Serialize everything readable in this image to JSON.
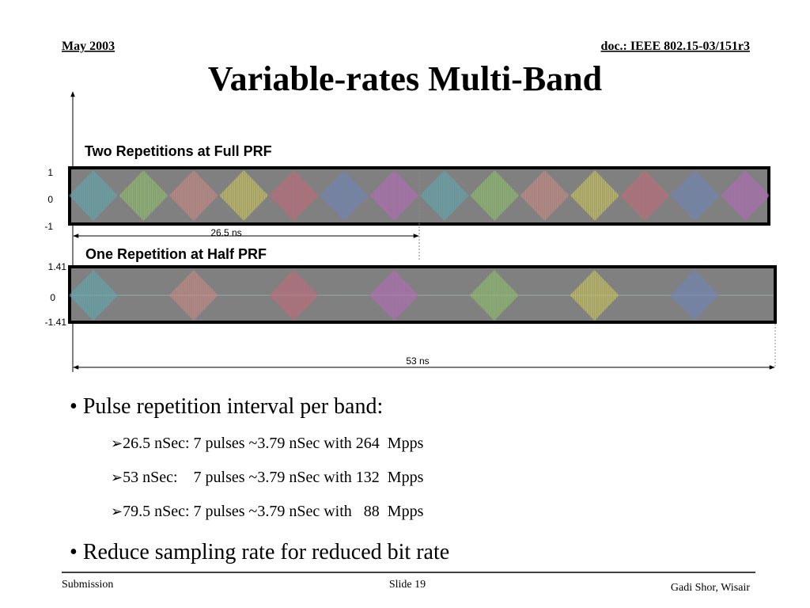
{
  "header": {
    "date": "May 2003",
    "doc": "doc.: IEEE 802.15-03/151r3"
  },
  "title": "Variable-rates Multi-Band",
  "figure": {
    "top": {
      "label": "Two Repetitions at Full PRF",
      "axis": [
        "1",
        "0",
        "-1"
      ],
      "span": "26.5 ns"
    },
    "bottom": {
      "label": "One Repetition at Half PRF",
      "axis": [
        "1.41",
        "0",
        "-1.41"
      ],
      "span": "53 ns"
    }
  },
  "bullets": [
    {
      "text": "Pulse repetition interval per band:",
      "sub": [
        "26.5 nSec: 7 pulses ~3.79 nSec with 264  Mpps",
        "53 nSec:    7 pulses ~3.79 nSec with 132  Mpps",
        "79.5 nSec: 7 pulses ~3.79 nSec with   88  Mpps"
      ]
    },
    {
      "text": "Reduce sampling rate for reduced bit rate"
    }
  ],
  "footer": {
    "left": "Submission",
    "center": "Slide 19",
    "right": "Gadi Shor, Wisair"
  }
}
